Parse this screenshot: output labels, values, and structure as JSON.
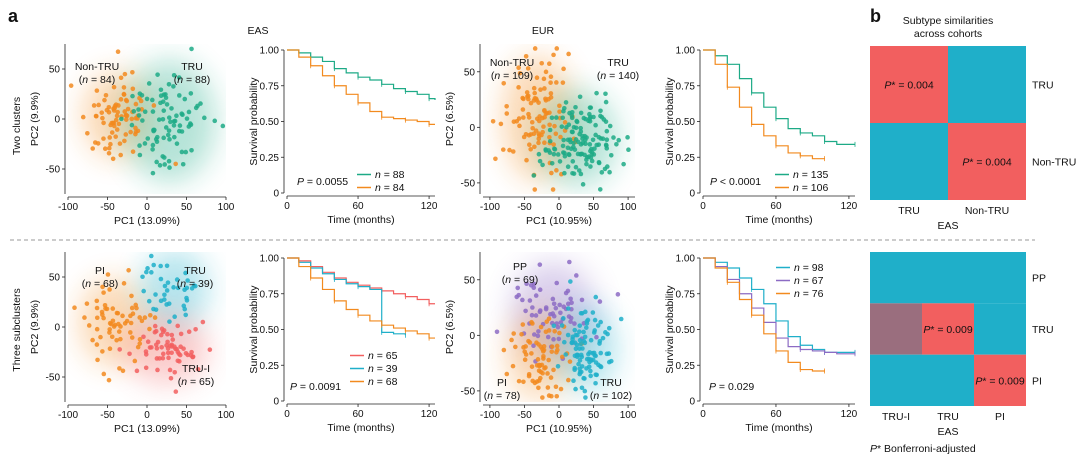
{
  "panel_labels": {
    "a": "a",
    "b": "b"
  },
  "cohort_titles": {
    "eas": "EAS",
    "eur": "EUR"
  },
  "row_labels": {
    "top": "Two clusters",
    "bottom": "Three subclusters"
  },
  "colors": {
    "orange": "#F28A1E",
    "green": "#1DAA86",
    "red": "#F25F5F",
    "blue": "#1FAFC9",
    "purple": "#8C6BC4",
    "heat_blue": "#2E86C1",
    "heat_red": "#FF4E4E",
    "heat_mauve": "#9A6E7E"
  },
  "chart_data": [
    {
      "type": "scatter",
      "id": "eas_two_pca",
      "xlabel": "PC1 (13.09%)",
      "ylabel": "PC2 (9.9%)",
      "xlim": [
        -100,
        100
      ],
      "ylim": [
        -75,
        75
      ],
      "xticks": [
        -100,
        -50,
        0,
        50,
        100
      ],
      "yticks": [
        -50,
        0,
        50
      ],
      "clusters": [
        {
          "name": "Non-TRU",
          "n_label": "(n = 84)",
          "color": "orange",
          "n": 84,
          "cx": -38,
          "cy": 4,
          "sx": 20,
          "sy": 20
        },
        {
          "name": "TRU",
          "n_label": "(n = 88)",
          "color": "green",
          "n": 88,
          "cx": 28,
          "cy": -2,
          "sx": 27,
          "sy": 28
        }
      ]
    },
    {
      "type": "line",
      "id": "eas_two_km",
      "xlabel": "Time (months)",
      "ylabel": "Survival probability",
      "xlim": [
        0,
        125
      ],
      "ylim": [
        0,
        1
      ],
      "xticks": [
        0,
        60,
        120
      ],
      "yticks": [
        "0",
        "0.25",
        "0.50",
        "0.75",
        "1.00"
      ],
      "pvalue": "P = 0.0055",
      "series": [
        {
          "name": "n = 88",
          "color": "green",
          "x": [
            0,
            10,
            20,
            30,
            40,
            50,
            60,
            70,
            80,
            90,
            100,
            110,
            120,
            125
          ],
          "y": [
            1.0,
            0.98,
            0.95,
            0.92,
            0.87,
            0.84,
            0.81,
            0.79,
            0.76,
            0.73,
            0.71,
            0.69,
            0.66,
            0.65
          ]
        },
        {
          "name": "n = 84",
          "color": "orange",
          "x": [
            0,
            10,
            20,
            30,
            40,
            50,
            60,
            70,
            80,
            90,
            100,
            110,
            120,
            125
          ],
          "y": [
            1.0,
            0.95,
            0.89,
            0.82,
            0.75,
            0.69,
            0.63,
            0.57,
            0.53,
            0.52,
            0.51,
            0.5,
            0.48,
            0.48
          ]
        }
      ]
    },
    {
      "type": "scatter",
      "id": "eur_two_pca",
      "xlabel": "PC1 (10.95%)",
      "ylabel": "PC2 (6.5%)",
      "xlim": [
        -110,
        110
      ],
      "ylim": [
        -60,
        75
      ],
      "xticks": [
        -100,
        -50,
        0,
        50,
        100
      ],
      "yticks": [
        -50,
        0,
        50
      ],
      "clusters": [
        {
          "name": "Non-TRU",
          "n_label": "(n = 109)",
          "color": "orange",
          "n": 109,
          "cx": -30,
          "cy": 8,
          "sx": 24,
          "sy": 26
        },
        {
          "name": "TRU",
          "n_label": "(n = 140)",
          "color": "green",
          "n": 140,
          "cx": 28,
          "cy": -10,
          "sx": 26,
          "sy": 20
        }
      ]
    },
    {
      "type": "line",
      "id": "eur_two_km",
      "xlabel": "Time (months)",
      "ylabel": "Survival probability",
      "xlim": [
        0,
        125
      ],
      "ylim": [
        0,
        1
      ],
      "xticks": [
        0,
        60,
        120
      ],
      "yticks": [
        "0",
        "0.25",
        "0.50",
        "0.75",
        "1.00"
      ],
      "pvalue": "P < 0.0001",
      "series": [
        {
          "name": "n = 135",
          "color": "green",
          "x": [
            0,
            10,
            20,
            30,
            40,
            50,
            60,
            70,
            80,
            90,
            100,
            110,
            125
          ],
          "y": [
            1.0,
            0.96,
            0.9,
            0.8,
            0.7,
            0.6,
            0.52,
            0.45,
            0.42,
            0.4,
            0.36,
            0.34,
            0.34
          ]
        },
        {
          "name": "n = 106",
          "color": "orange",
          "x": [
            0,
            10,
            20,
            30,
            40,
            50,
            60,
            70,
            80,
            90,
            100
          ],
          "y": [
            1.0,
            0.9,
            0.74,
            0.6,
            0.48,
            0.4,
            0.33,
            0.28,
            0.26,
            0.24,
            0.24
          ]
        }
      ]
    },
    {
      "type": "heatmap",
      "id": "two_heatmap",
      "title": "Subtype similarities across cohorts",
      "xlabel": "EAS",
      "ylabel": "EUR",
      "x_categories": [
        "TRU",
        "Non-TRU"
      ],
      "y_categories": [
        "TRU",
        "Non-TRU"
      ],
      "cells": [
        [
          "red",
          "blue"
        ],
        [
          "blue",
          "red"
        ]
      ],
      "annotations": [
        {
          "row": 0,
          "col": 0,
          "text": "P* = 0.004"
        },
        {
          "row": 1,
          "col": 1,
          "text": "P* = 0.004"
        }
      ]
    },
    {
      "type": "scatter",
      "id": "eas_three_pca",
      "xlabel": "PC1 (13.09%)",
      "ylabel": "PC2 (9.9%)",
      "xlim": [
        -100,
        100
      ],
      "ylim": [
        -75,
        75
      ],
      "xticks": [
        -100,
        -50,
        0,
        50,
        100
      ],
      "yticks": [
        -50,
        0,
        50
      ],
      "clusters": [
        {
          "name": "PI",
          "n_label": "(n = 68)",
          "color": "orange",
          "n": 68,
          "cx": -42,
          "cy": 5,
          "sx": 20,
          "sy": 20
        },
        {
          "name": "TRU",
          "n_label": "(n = 39)",
          "color": "blue",
          "n": 39,
          "cx": 35,
          "cy": 38,
          "sx": 20,
          "sy": 18
        },
        {
          "name": "TRU-I",
          "n_label": "(n = 65)",
          "color": "red",
          "n": 65,
          "cx": 25,
          "cy": -22,
          "sx": 24,
          "sy": 16
        }
      ]
    },
    {
      "type": "line",
      "id": "eas_three_km",
      "xlabel": "Time (months)",
      "ylabel": "Survival probability",
      "xlim": [
        0,
        125
      ],
      "ylim": [
        0,
        1
      ],
      "xticks": [
        0,
        60,
        120
      ],
      "yticks": [
        "0",
        "0.25",
        "0.50",
        "0.75",
        "1.00"
      ],
      "pvalue": "P = 0.0091",
      "series": [
        {
          "name": "n = 65",
          "color": "red",
          "x": [
            0,
            10,
            20,
            30,
            40,
            50,
            60,
            70,
            80,
            90,
            100,
            110,
            120,
            125
          ],
          "y": [
            1.0,
            0.98,
            0.94,
            0.9,
            0.86,
            0.83,
            0.81,
            0.79,
            0.77,
            0.75,
            0.73,
            0.71,
            0.68,
            0.68
          ]
        },
        {
          "name": "n = 39",
          "color": "blue",
          "x": [
            0,
            10,
            20,
            30,
            40,
            50,
            60,
            70,
            80,
            90,
            100
          ],
          "y": [
            1.0,
            0.97,
            0.93,
            0.89,
            0.85,
            0.82,
            0.8,
            0.78,
            0.48,
            0.47,
            0.46
          ]
        },
        {
          "name": "n = 68",
          "color": "orange",
          "x": [
            0,
            10,
            20,
            30,
            40,
            50,
            60,
            70,
            80,
            90,
            100,
            110,
            120,
            125
          ],
          "y": [
            1.0,
            0.94,
            0.86,
            0.78,
            0.7,
            0.64,
            0.6,
            0.56,
            0.53,
            0.51,
            0.49,
            0.47,
            0.44,
            0.44
          ]
        }
      ]
    },
    {
      "type": "scatter",
      "id": "eur_three_pca",
      "xlabel": "PC1 (10.95%)",
      "ylabel": "PC2 (6.5%)",
      "xlim": [
        -110,
        110
      ],
      "ylim": [
        -60,
        75
      ],
      "xticks": [
        -100,
        -50,
        0,
        50,
        100
      ],
      "yticks": [
        -50,
        0,
        50
      ],
      "clusters": [
        {
          "name": "PP",
          "n_label": "(n = 69)",
          "color": "purple",
          "n": 69,
          "cx": -8,
          "cy": 22,
          "sx": 28,
          "sy": 20
        },
        {
          "name": "PI",
          "n_label": "(n = 78)",
          "color": "orange",
          "n": 78,
          "cx": -28,
          "cy": -18,
          "sx": 22,
          "sy": 18
        },
        {
          "name": "TRU",
          "n_label": "(n = 102)",
          "color": "blue",
          "n": 102,
          "cx": 40,
          "cy": -12,
          "sx": 20,
          "sy": 18
        }
      ]
    },
    {
      "type": "line",
      "id": "eur_three_km",
      "xlabel": "Time (months)",
      "ylabel": "Survival probability",
      "xlim": [
        0,
        125
      ],
      "ylim": [
        0,
        1
      ],
      "xticks": [
        0,
        60,
        120
      ],
      "yticks": [
        "0",
        "0.25",
        "0.50",
        "0.75",
        "1.00"
      ],
      "pvalue": "P = 0.029",
      "series": [
        {
          "name": "n = 98",
          "color": "blue",
          "x": [
            0,
            10,
            20,
            30,
            40,
            50,
            60,
            70,
            80,
            90,
            100,
            110,
            125
          ],
          "y": [
            1.0,
            0.97,
            0.93,
            0.86,
            0.78,
            0.68,
            0.56,
            0.45,
            0.39,
            0.36,
            0.34,
            0.34,
            0.34
          ]
        },
        {
          "name": "n = 67",
          "color": "purple",
          "x": [
            0,
            10,
            20,
            30,
            40,
            50,
            60,
            70,
            80,
            90,
            100,
            110,
            125
          ],
          "y": [
            1.0,
            0.94,
            0.85,
            0.75,
            0.65,
            0.55,
            0.44,
            0.38,
            0.36,
            0.35,
            0.34,
            0.33,
            0.33
          ]
        },
        {
          "name": "n = 76",
          "color": "orange",
          "x": [
            0,
            10,
            20,
            30,
            40,
            50,
            60,
            70,
            80,
            90,
            100
          ],
          "y": [
            1.0,
            0.93,
            0.83,
            0.71,
            0.6,
            0.47,
            0.35,
            0.27,
            0.22,
            0.21,
            0.21
          ]
        }
      ]
    },
    {
      "type": "heatmap",
      "id": "three_heatmap",
      "xlabel": "EAS",
      "ylabel": "EUR",
      "x_categories": [
        "TRU-I",
        "TRU",
        "PI"
      ],
      "y_categories": [
        "PP",
        "TRU",
        "PI"
      ],
      "cells": [
        [
          "blue",
          "blue",
          "blue"
        ],
        [
          "mauve",
          "red",
          "blue"
        ],
        [
          "blue",
          "blue",
          "red"
        ]
      ],
      "annotations": [
        {
          "row": 1,
          "col": 1,
          "text": "P* = 0.009"
        },
        {
          "row": 2,
          "col": 2,
          "text": "P* = 0.009"
        }
      ],
      "footnote": "P* Bonferroni-adjusted"
    }
  ]
}
